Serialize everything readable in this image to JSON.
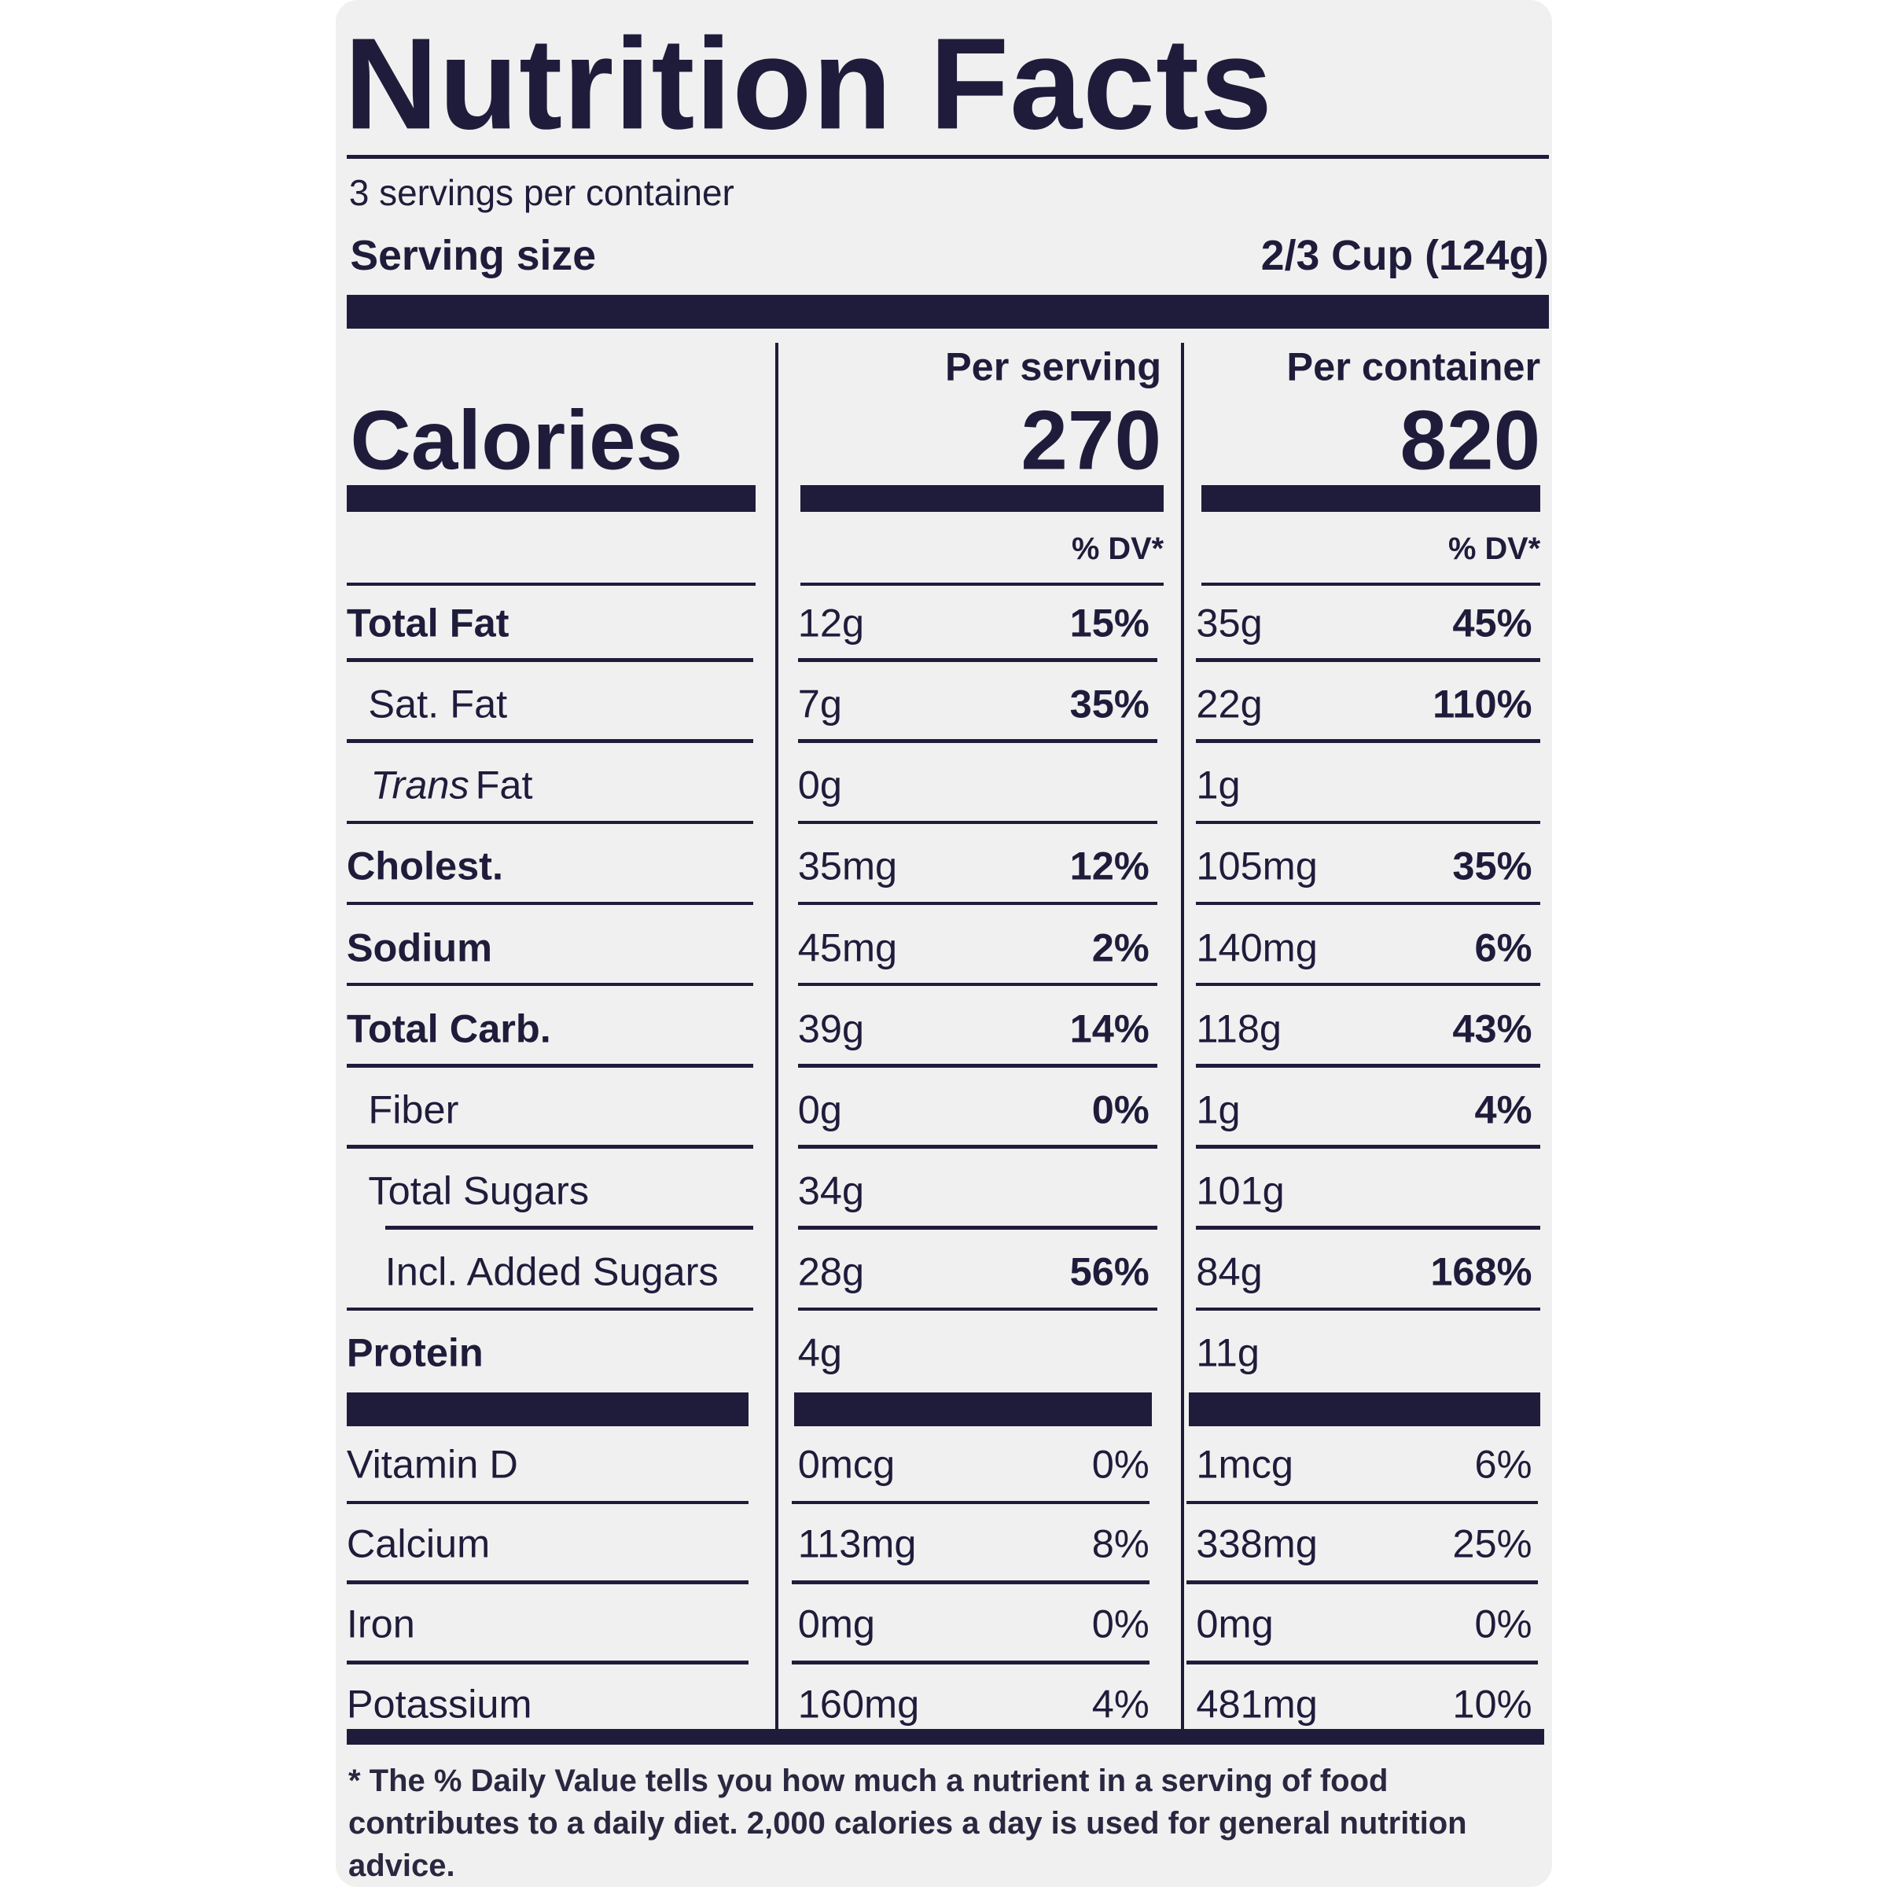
{
  "header": {
    "title": "Nutrition Facts",
    "servings": "3 servings per container",
    "serving_size_label": "Serving size",
    "serving_size": "2/3 Cup (124g)"
  },
  "calories": {
    "label": "Calories",
    "per_serving_label": "Per serving",
    "per_serving": "270",
    "per_container_label": "Per container",
    "per_container": "820",
    "dv_serving": "% DV*",
    "dv_container": "% DV*"
  },
  "nutrients": [
    {
      "name": "Total Fat",
      "serving": "12g",
      "serving_dv": "15%",
      "container": "35g",
      "container_dv": "45%"
    },
    {
      "name": "Sat. Fat",
      "serving": "7g",
      "serving_dv": "35%",
      "container": "22g",
      "container_dv": "110%"
    },
    {
      "name_italic": "Trans",
      "name": "Fat",
      "serving": "0g",
      "serving_dv": null,
      "container": "1g",
      "container_dv": null
    },
    {
      "name": "Cholest.",
      "serving": "35mg",
      "serving_dv": "12%",
      "container": "105mg",
      "container_dv": "35%"
    },
    {
      "name": "Sodium",
      "serving": "45mg",
      "serving_dv": "2%",
      "container": "140mg",
      "container_dv": "6%"
    },
    {
      "name": "Total Carb.",
      "serving": "39g",
      "serving_dv": "14%",
      "container": "118g",
      "container_dv": "43%"
    },
    {
      "name": "Fiber",
      "serving": "0g",
      "serving_dv": "0%",
      "container": "1g",
      "container_dv": "4%"
    },
    {
      "name": "Total Sugars",
      "serving": "34g",
      "serving_dv": null,
      "container": "101g",
      "container_dv": null
    },
    {
      "name": "Incl. Added Sugars",
      "serving": "28g",
      "serving_dv": "56%",
      "container": "84g",
      "container_dv": "168%"
    },
    {
      "name": "Protein",
      "serving": "4g",
      "serving_dv": null,
      "container": "11g",
      "container_dv": null
    }
  ],
  "vitamins": [
    {
      "name": "Vitamin D",
      "serving": "0mcg",
      "serving_dv": "0%",
      "container": "1mcg",
      "container_dv": "6%"
    },
    {
      "name": "Calcium",
      "serving": "113mg",
      "serving_dv": "8%",
      "container": "338mg",
      "container_dv": "25%"
    },
    {
      "name": "Iron",
      "serving": "0mg",
      "serving_dv": "0%",
      "container": "0mg",
      "container_dv": "0%"
    },
    {
      "name": "Potassium",
      "serving": "160mg",
      "serving_dv": "4%",
      "container": "481mg",
      "container_dv": "10%"
    }
  ],
  "footnote": "* The % Daily Value tells you how much a nutrient in a serving of food contributes to a daily diet. 2,000 calories a day is used for general nutrition advice."
}
